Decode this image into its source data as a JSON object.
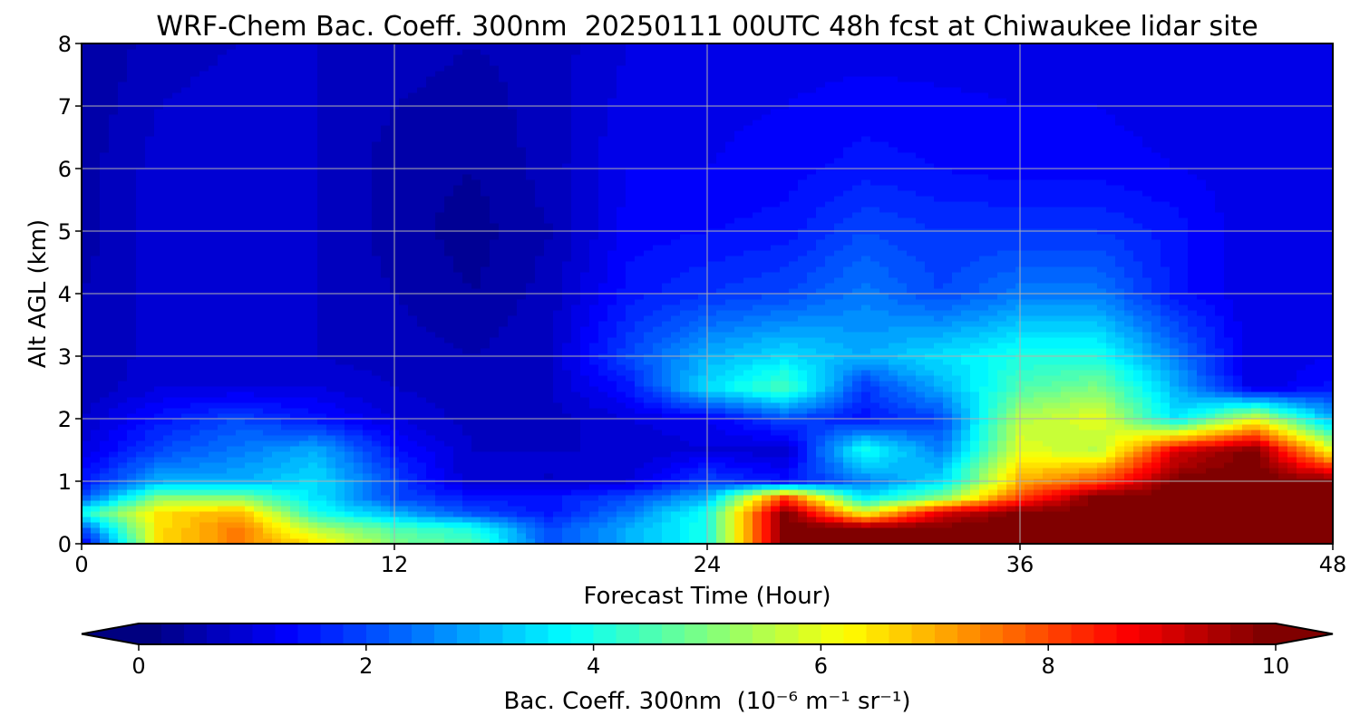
{
  "chart_data": {
    "type": "heatmap",
    "title": "WRF-Chem Bac. Coeff. 300nm  20250111 00UTC 48h fcst at Chiwaukee lidar site",
    "xlabel": "Forecast Time (Hour)",
    "ylabel": "Alt AGL (km)",
    "xlim": [
      0,
      48
    ],
    "ylim": [
      0,
      8
    ],
    "xticks": [
      "0",
      "12",
      "24",
      "36",
      "48"
    ],
    "yticks": [
      "0",
      "1",
      "2",
      "3",
      "4",
      "5",
      "6",
      "7",
      "8"
    ],
    "grid": true,
    "x": [
      0,
      3,
      6,
      9,
      12,
      15,
      18,
      21,
      24,
      27,
      30,
      33,
      36,
      39,
      42,
      45,
      48
    ],
    "y": [
      0,
      0.25,
      0.5,
      0.75,
      1,
      1.5,
      2,
      2.5,
      3,
      4,
      5,
      6,
      8
    ],
    "z": [
      [
        1,
        6.5,
        7.5,
        6.5,
        5,
        4.5,
        2,
        3,
        4,
        10,
        10,
        10,
        10,
        10,
        10,
        10,
        10
      ],
      [
        2,
        6.5,
        7.5,
        5.5,
        4.5,
        4,
        2,
        3,
        4,
        10,
        10,
        10,
        10,
        10,
        10,
        10,
        10
      ],
      [
        4,
        6.5,
        7,
        4,
        3,
        2,
        1.5,
        2.5,
        4,
        10,
        6,
        9,
        10,
        10,
        10,
        10,
        10
      ],
      [
        2,
        5,
        5,
        3.5,
        2,
        1.5,
        1.5,
        2,
        3,
        8,
        3.5,
        5,
        8,
        10,
        10,
        10,
        10
      ],
      [
        1.5,
        3,
        3,
        3.5,
        2,
        0.8,
        0.8,
        1,
        2,
        1.5,
        2.5,
        3.5,
        7,
        8,
        10,
        10,
        10
      ],
      [
        1,
        2,
        2.5,
        3,
        1.5,
        0.8,
        0.8,
        0.8,
        1,
        0.8,
        4,
        2.5,
        6,
        5.5,
        9,
        10,
        6
      ],
      [
        0.8,
        1.5,
        2,
        1.5,
        1,
        0.7,
        0.7,
        1,
        1.2,
        2,
        1.5,
        2,
        5.5,
        6,
        3.5,
        6,
        3
      ],
      [
        0.6,
        1,
        1,
        1,
        0.8,
        0.7,
        0.8,
        1.5,
        3.5,
        4.5,
        1.8,
        3,
        4.5,
        5,
        3,
        1,
        1.5
      ],
      [
        0.6,
        0.9,
        0.9,
        0.8,
        0.7,
        0.6,
        0.8,
        2,
        3,
        3.5,
        3,
        3.5,
        4,
        4,
        2.5,
        1,
        1.2
      ],
      [
        0.6,
        0.9,
        1,
        0.8,
        0.6,
        0.4,
        0.7,
        1.5,
        1.8,
        2,
        2.5,
        2,
        2.5,
        2.5,
        1.5,
        1,
        1.2
      ],
      [
        0.5,
        0.9,
        1,
        0.8,
        0.5,
        0.3,
        0.6,
        1.3,
        1.4,
        1.5,
        2,
        1.8,
        1.8,
        1.8,
        1.5,
        1,
        1.2
      ],
      [
        0.5,
        0.9,
        1,
        0.8,
        0.5,
        0.4,
        0.7,
        1.2,
        1.2,
        1.3,
        1.5,
        1.4,
        1.3,
        1.3,
        1.2,
        1.1,
        1.2
      ],
      [
        0.4,
        0.7,
        0.8,
        0.8,
        0.7,
        0.6,
        0.7,
        1,
        1.1,
        1.1,
        1.1,
        1.1,
        1.1,
        1.1,
        1,
        1,
        1.1
      ]
    ],
    "colormap": "jet",
    "colorbar": {
      "range": [
        0,
        10
      ],
      "extend": "both",
      "ticks": [
        "0",
        "2",
        "4",
        "6",
        "8",
        "10"
      ],
      "label": "Bac. Coeff. 300nm  (10⁻⁶ m⁻¹ sr⁻¹)",
      "placement": "bottom"
    }
  }
}
